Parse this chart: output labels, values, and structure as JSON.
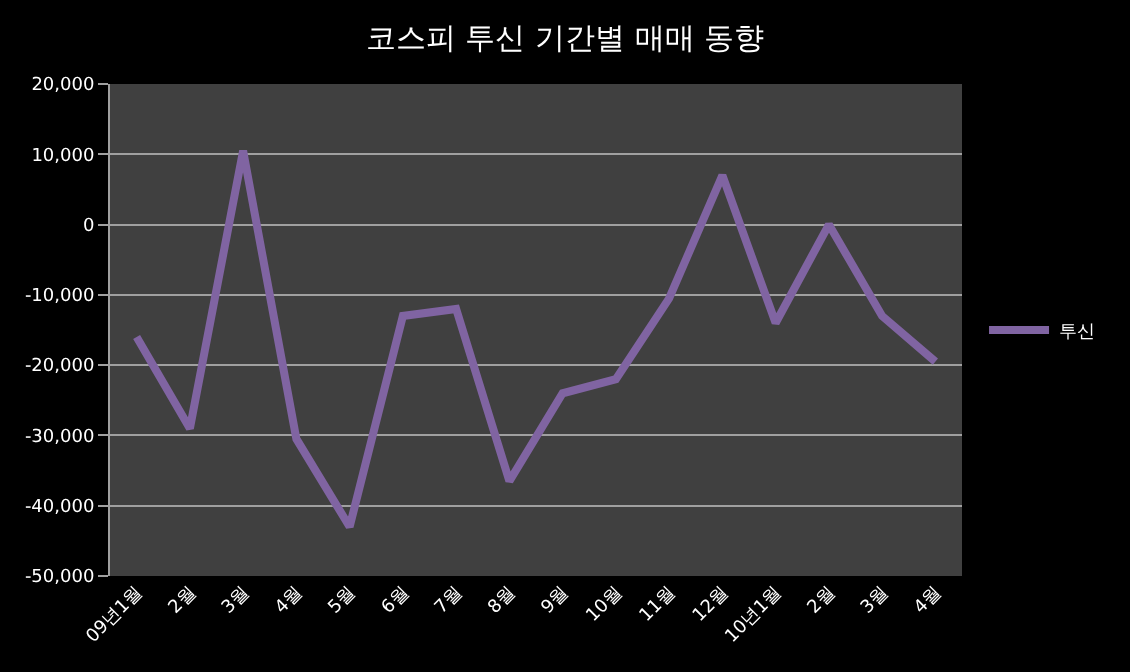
{
  "chart_data": {
    "type": "line",
    "title": "코스피 투신 기간별 매매 동향",
    "categories": [
      "09년1월",
      "2월",
      "3월",
      "4월",
      "5월",
      "6월",
      "7월",
      "8월",
      "9월",
      "10월",
      "11월",
      "12월",
      "10년1월",
      "2월",
      "3월",
      "4월"
    ],
    "series": [
      {
        "name": "투신",
        "color": "#8064a2",
        "values": [
          -16000,
          -29000,
          10500,
          -30500,
          -43000,
          -13000,
          -12000,
          -36500,
          -24000,
          -22000,
          -10500,
          7000,
          -14000,
          0,
          -13000,
          -19500
        ]
      }
    ],
    "ylim": [
      -50000,
      20000
    ],
    "yticks": [
      {
        "value": -50000,
        "label": "-50,000"
      },
      {
        "value": -40000,
        "label": "-40,000"
      },
      {
        "value": -30000,
        "label": "-30,000"
      },
      {
        "value": -20000,
        "label": "-20,000"
      },
      {
        "value": -10000,
        "label": "-10,000"
      },
      0,
      {
        "value": 10000,
        "label": "10,000"
      },
      {
        "value": 20000,
        "label": "20,000"
      }
    ],
    "grid": "y",
    "legend": "right",
    "marker": "none",
    "line_style": "solid"
  }
}
